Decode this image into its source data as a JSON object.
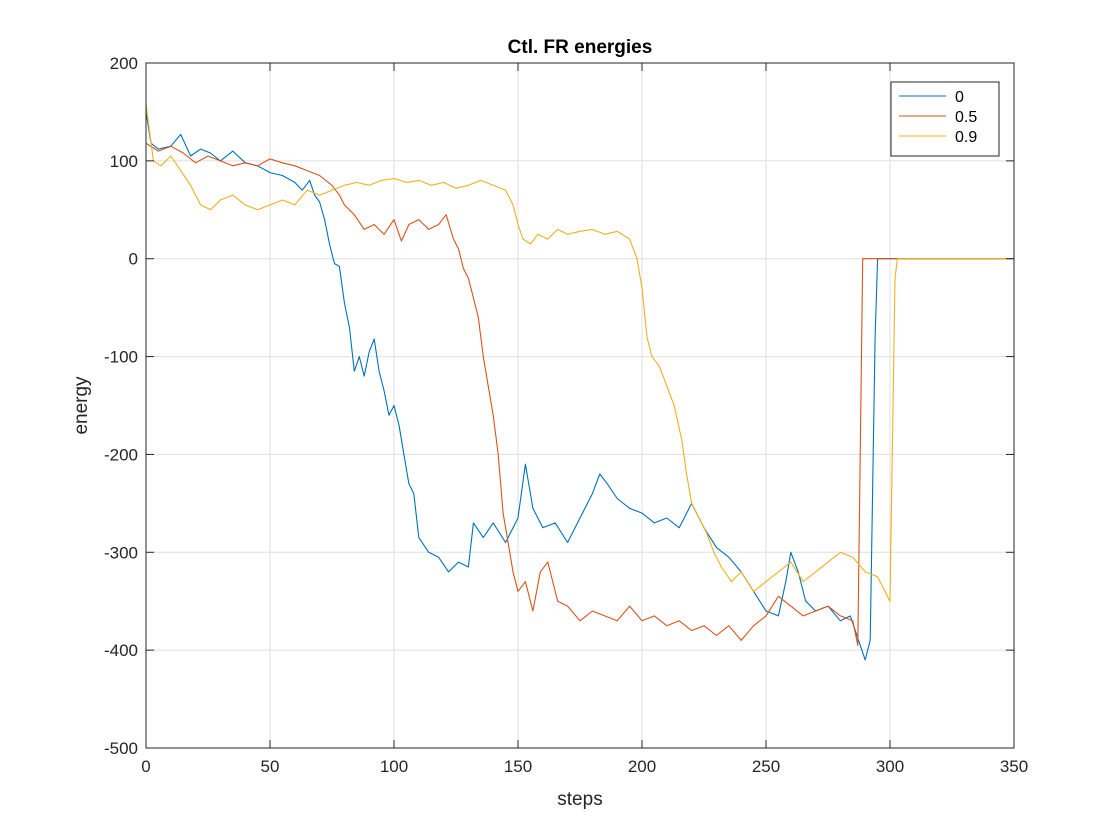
{
  "chart_data": {
    "type": "line",
    "title": "Ctl. FR energies",
    "xlabel": "steps",
    "ylabel": "energy",
    "xlim": [
      0,
      350
    ],
    "ylim": [
      -500,
      200
    ],
    "xticks": [
      "0",
      "50",
      "100",
      "150",
      "200",
      "250",
      "300",
      "350"
    ],
    "yticks": [
      "-500",
      "-400",
      "-300",
      "-200",
      "-100",
      "0",
      "100",
      "200"
    ],
    "grid": true,
    "legend_position": "top-right",
    "series": [
      {
        "name": "0",
        "color": "#0072BD",
        "points": [
          [
            0,
            150
          ],
          [
            2,
            118
          ],
          [
            5,
            112
          ],
          [
            10,
            115
          ],
          [
            14,
            127
          ],
          [
            18,
            105
          ],
          [
            22,
            112
          ],
          [
            26,
            108
          ],
          [
            30,
            100
          ],
          [
            35,
            110
          ],
          [
            40,
            98
          ],
          [
            45,
            95
          ],
          [
            50,
            88
          ],
          [
            55,
            85
          ],
          [
            60,
            78
          ],
          [
            63,
            70
          ],
          [
            66,
            80
          ],
          [
            68,
            65
          ],
          [
            70,
            58
          ],
          [
            72,
            40
          ],
          [
            74,
            15
          ],
          [
            76,
            -5
          ],
          [
            78,
            -8
          ],
          [
            80,
            -45
          ],
          [
            82,
            -70
          ],
          [
            84,
            -115
          ],
          [
            86,
            -100
          ],
          [
            88,
            -120
          ],
          [
            90,
            -95
          ],
          [
            92,
            -82
          ],
          [
            94,
            -115
          ],
          [
            96,
            -135
          ],
          [
            98,
            -160
          ],
          [
            100,
            -150
          ],
          [
            102,
            -170
          ],
          [
            104,
            -200
          ],
          [
            106,
            -230
          ],
          [
            108,
            -240
          ],
          [
            110,
            -285
          ],
          [
            114,
            -300
          ],
          [
            118,
            -305
          ],
          [
            122,
            -320
          ],
          [
            126,
            -310
          ],
          [
            130,
            -315
          ],
          [
            132,
            -270
          ],
          [
            136,
            -285
          ],
          [
            140,
            -270
          ],
          [
            145,
            -290
          ],
          [
            150,
            -265
          ],
          [
            153,
            -210
          ],
          [
            156,
            -255
          ],
          [
            160,
            -275
          ],
          [
            165,
            -270
          ],
          [
            170,
            -290
          ],
          [
            175,
            -265
          ],
          [
            180,
            -240
          ],
          [
            183,
            -220
          ],
          [
            186,
            -230
          ],
          [
            190,
            -245
          ],
          [
            195,
            -255
          ],
          [
            200,
            -260
          ],
          [
            205,
            -270
          ],
          [
            210,
            -265
          ],
          [
            215,
            -275
          ],
          [
            220,
            -250
          ],
          [
            225,
            -275
          ],
          [
            230,
            -295
          ],
          [
            235,
            -305
          ],
          [
            240,
            -320
          ],
          [
            245,
            -340
          ],
          [
            250,
            -360
          ],
          [
            255,
            -365
          ],
          [
            258,
            -330
          ],
          [
            260,
            -300
          ],
          [
            263,
            -320
          ],
          [
            266,
            -350
          ],
          [
            270,
            -360
          ],
          [
            275,
            -355
          ],
          [
            280,
            -370
          ],
          [
            284,
            -365
          ],
          [
            286,
            -380
          ],
          [
            288,
            -395
          ],
          [
            290,
            -410
          ],
          [
            292,
            -390
          ],
          [
            294,
            -80
          ],
          [
            295,
            0
          ],
          [
            350,
            0
          ]
        ]
      },
      {
        "name": "0.5",
        "color": "#D95319",
        "points": [
          [
            0,
            118
          ],
          [
            5,
            110
          ],
          [
            10,
            115
          ],
          [
            15,
            108
          ],
          [
            20,
            98
          ],
          [
            25,
            105
          ],
          [
            30,
            100
          ],
          [
            35,
            95
          ],
          [
            40,
            98
          ],
          [
            45,
            95
          ],
          [
            50,
            102
          ],
          [
            55,
            98
          ],
          [
            60,
            95
          ],
          [
            65,
            90
          ],
          [
            70,
            85
          ],
          [
            75,
            75
          ],
          [
            78,
            65
          ],
          [
            80,
            55
          ],
          [
            84,
            45
          ],
          [
            88,
            30
          ],
          [
            92,
            35
          ],
          [
            96,
            25
          ],
          [
            100,
            40
          ],
          [
            103,
            18
          ],
          [
            106,
            35
          ],
          [
            110,
            40
          ],
          [
            114,
            30
          ],
          [
            118,
            35
          ],
          [
            121,
            45
          ],
          [
            124,
            20
          ],
          [
            126,
            10
          ],
          [
            128,
            -10
          ],
          [
            130,
            -20
          ],
          [
            132,
            -40
          ],
          [
            134,
            -60
          ],
          [
            136,
            -100
          ],
          [
            138,
            -130
          ],
          [
            140,
            -160
          ],
          [
            142,
            -200
          ],
          [
            144,
            -260
          ],
          [
            146,
            -290
          ],
          [
            148,
            -320
          ],
          [
            150,
            -340
          ],
          [
            153,
            -330
          ],
          [
            156,
            -360
          ],
          [
            159,
            -320
          ],
          [
            162,
            -310
          ],
          [
            166,
            -350
          ],
          [
            170,
            -355
          ],
          [
            175,
            -370
          ],
          [
            180,
            -360
          ],
          [
            185,
            -365
          ],
          [
            190,
            -370
          ],
          [
            195,
            -355
          ],
          [
            200,
            -370
          ],
          [
            205,
            -365
          ],
          [
            210,
            -375
          ],
          [
            215,
            -370
          ],
          [
            220,
            -380
          ],
          [
            225,
            -375
          ],
          [
            230,
            -385
          ],
          [
            235,
            -375
          ],
          [
            240,
            -390
          ],
          [
            245,
            -375
          ],
          [
            250,
            -365
          ],
          [
            255,
            -345
          ],
          [
            260,
            -355
          ],
          [
            265,
            -365
          ],
          [
            270,
            -360
          ],
          [
            275,
            -355
          ],
          [
            280,
            -365
          ],
          [
            285,
            -370
          ],
          [
            287,
            -395
          ],
          [
            289,
            0
          ],
          [
            350,
            0
          ]
        ]
      },
      {
        "name": "0.9",
        "color": "#EDB120",
        "points": [
          [
            0,
            158
          ],
          [
            3,
            100
          ],
          [
            6,
            95
          ],
          [
            10,
            105
          ],
          [
            14,
            90
          ],
          [
            18,
            75
          ],
          [
            22,
            55
          ],
          [
            26,
            50
          ],
          [
            30,
            60
          ],
          [
            35,
            65
          ],
          [
            40,
            55
          ],
          [
            45,
            50
          ],
          [
            50,
            55
          ],
          [
            55,
            60
          ],
          [
            60,
            55
          ],
          [
            65,
            70
          ],
          [
            70,
            65
          ],
          [
            75,
            70
          ],
          [
            80,
            75
          ],
          [
            85,
            78
          ],
          [
            90,
            75
          ],
          [
            95,
            80
          ],
          [
            100,
            82
          ],
          [
            105,
            78
          ],
          [
            110,
            80
          ],
          [
            115,
            75
          ],
          [
            120,
            78
          ],
          [
            125,
            72
          ],
          [
            130,
            75
          ],
          [
            135,
            80
          ],
          [
            140,
            75
          ],
          [
            145,
            70
          ],
          [
            148,
            55
          ],
          [
            150,
            35
          ],
          [
            152,
            20
          ],
          [
            155,
            15
          ],
          [
            158,
            25
          ],
          [
            162,
            20
          ],
          [
            166,
            30
          ],
          [
            170,
            25
          ],
          [
            175,
            28
          ],
          [
            180,
            30
          ],
          [
            185,
            25
          ],
          [
            190,
            28
          ],
          [
            195,
            20
          ],
          [
            198,
            0
          ],
          [
            200,
            -30
          ],
          [
            202,
            -80
          ],
          [
            204,
            -100
          ],
          [
            207,
            -110
          ],
          [
            210,
            -130
          ],
          [
            213,
            -150
          ],
          [
            216,
            -185
          ],
          [
            218,
            -220
          ],
          [
            220,
            -250
          ],
          [
            223,
            -265
          ],
          [
            226,
            -280
          ],
          [
            229,
            -300
          ],
          [
            232,
            -315
          ],
          [
            236,
            -330
          ],
          [
            240,
            -320
          ],
          [
            245,
            -340
          ],
          [
            250,
            -330
          ],
          [
            255,
            -320
          ],
          [
            260,
            -310
          ],
          [
            265,
            -330
          ],
          [
            270,
            -320
          ],
          [
            275,
            -310
          ],
          [
            280,
            -300
          ],
          [
            285,
            -305
          ],
          [
            290,
            -320
          ],
          [
            295,
            -325
          ],
          [
            298,
            -340
          ],
          [
            300,
            -350
          ],
          [
            302,
            -20
          ],
          [
            303,
            0
          ],
          [
            350,
            0
          ]
        ]
      }
    ]
  }
}
